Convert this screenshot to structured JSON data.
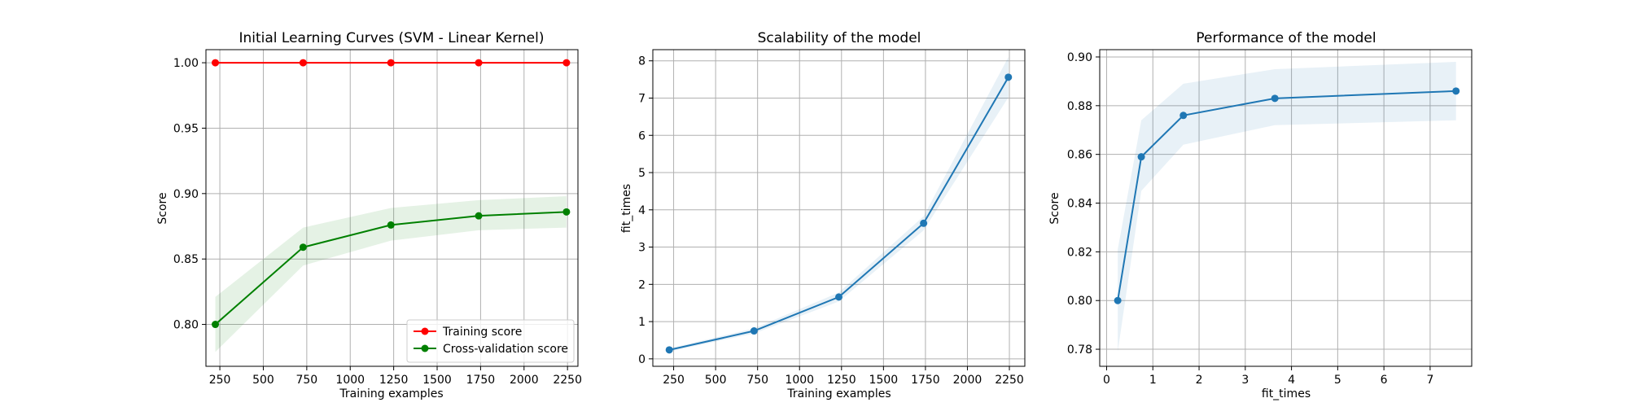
{
  "chart_data": [
    {
      "type": "line",
      "title": "Initial Learning Curves (SVM - Linear Kernel)",
      "xlabel": "Training examples",
      "ylabel": "Score",
      "xlim": [
        170,
        2310
      ],
      "ylim": [
        0.768,
        1.01
      ],
      "xticks": [
        250,
        500,
        750,
        1000,
        1250,
        1500,
        1750,
        2000,
        2250
      ],
      "xtick_labels": [
        "250",
        "500",
        "750",
        "1000",
        "1250",
        "1500",
        "1750",
        "2000",
        "2250"
      ],
      "yticks": [
        0.8,
        0.85,
        0.9,
        0.95,
        1.0
      ],
      "ytick_labels": [
        "0.80",
        "0.85",
        "0.90",
        "0.95",
        "1.00"
      ],
      "grid": true,
      "legend": "lower-right",
      "x": [
        224,
        729,
        1234,
        1739,
        2244
      ],
      "series": [
        {
          "name": "Training score",
          "color": "#ff0000",
          "values": [
            1.0,
            1.0,
            1.0,
            1.0,
            1.0
          ],
          "band_lower": [
            1.0,
            1.0,
            1.0,
            1.0,
            1.0
          ],
          "band_upper": [
            1.0,
            1.0,
            1.0,
            1.0,
            1.0
          ]
        },
        {
          "name": "Cross-validation score",
          "color": "#008000",
          "values": [
            0.8,
            0.859,
            0.876,
            0.883,
            0.886
          ],
          "band_lower": [
            0.779,
            0.845,
            0.864,
            0.872,
            0.874
          ],
          "band_upper": [
            0.821,
            0.874,
            0.889,
            0.895,
            0.898
          ]
        }
      ]
    },
    {
      "type": "line",
      "title": "Scalability of the model",
      "xlabel": "Training examples",
      "ylabel": "fit_times",
      "xlim": [
        126,
        2342
      ],
      "ylim": [
        -0.2,
        8.3
      ],
      "xticks": [
        250,
        500,
        750,
        1000,
        1250,
        1500,
        1750,
        2000,
        2250
      ],
      "xtick_labels": [
        "250",
        "500",
        "750",
        "1000",
        "1250",
        "1500",
        "1750",
        "2000",
        "2250"
      ],
      "yticks": [
        0,
        1,
        2,
        3,
        4,
        5,
        6,
        7,
        8
      ],
      "ytick_labels": [
        "0",
        "1",
        "2",
        "3",
        "4",
        "5",
        "6",
        "7",
        "8"
      ],
      "grid": true,
      "x": [
        224,
        729,
        1234,
        1739,
        2244
      ],
      "series": [
        {
          "color": "#1f77b4",
          "values": [
            0.24,
            0.75,
            1.66,
            3.64,
            7.56
          ],
          "band_lower": [
            0.2,
            0.68,
            1.54,
            3.45,
            7.02
          ],
          "band_upper": [
            0.28,
            0.82,
            1.78,
            3.83,
            8.1
          ]
        }
      ]
    },
    {
      "type": "line",
      "title": "Performance of the model",
      "xlabel": "fit_times",
      "ylabel": "Score",
      "xlim": [
        -0.15,
        7.9
      ],
      "ylim": [
        0.773,
        0.903
      ],
      "xticks": [
        0,
        1,
        2,
        3,
        4,
        5,
        6,
        7
      ],
      "xtick_labels": [
        "0",
        "1",
        "2",
        "3",
        "4",
        "5",
        "6",
        "7"
      ],
      "yticks": [
        0.78,
        0.8,
        0.82,
        0.84,
        0.86,
        0.88,
        0.9
      ],
      "ytick_labels": [
        "0.78",
        "0.80",
        "0.82",
        "0.84",
        "0.86",
        "0.88",
        "0.90"
      ],
      "grid": true,
      "x": [
        0.24,
        0.75,
        1.66,
        3.64,
        7.56
      ],
      "series": [
        {
          "color": "#1f77b4",
          "values": [
            0.8,
            0.859,
            0.876,
            0.883,
            0.886
          ],
          "band_lower": [
            0.779,
            0.845,
            0.864,
            0.872,
            0.874
          ],
          "band_upper": [
            0.821,
            0.874,
            0.889,
            0.895,
            0.898
          ]
        }
      ]
    }
  ]
}
